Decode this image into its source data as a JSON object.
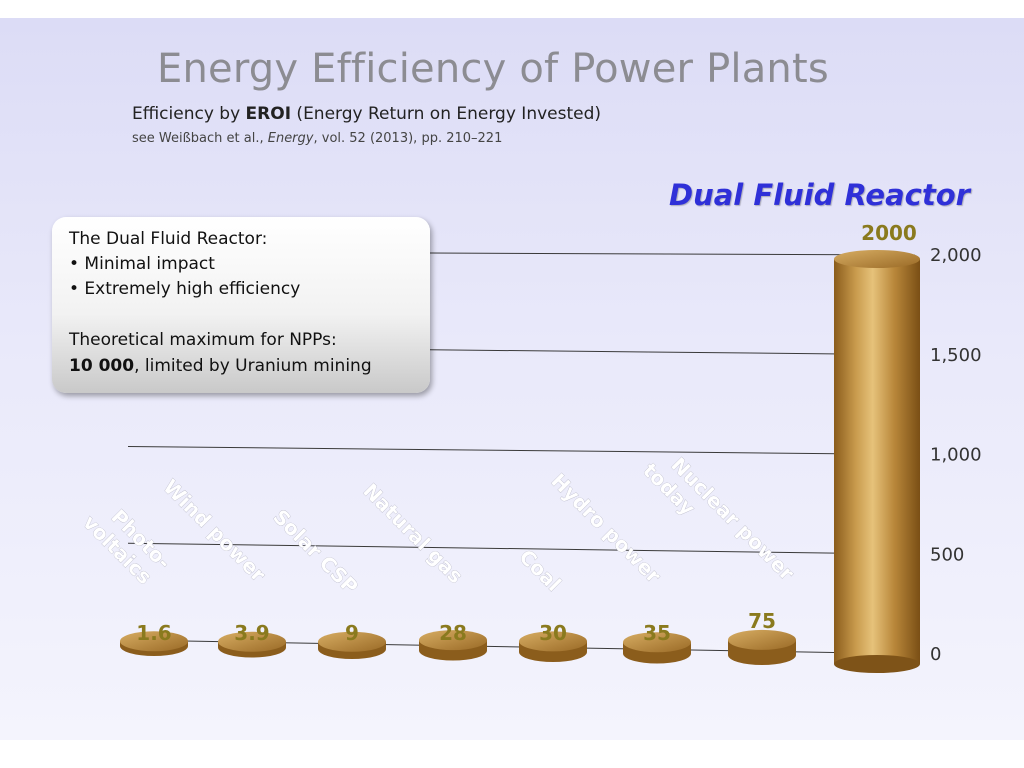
{
  "title": "Energy Efficiency of Power Plants",
  "subtitle": {
    "prefix": "Efficiency by ",
    "bold": "EROI",
    "suffix": " (Energy Return on Energy Invested)"
  },
  "reference": {
    "prefix": "see Weißbach et al., ",
    "italic": "Energy",
    "suffix": ", vol. 52 (2013), pp. 210–221"
  },
  "highlight_label": "Dual Fluid Reactor",
  "infobox": {
    "heading": "The Dual Fluid Reactor:",
    "bullets": [
      "• Minimal impact",
      "• Extremely high efficiency"
    ],
    "note_line1": "Theoretical maximum for NPPs:",
    "note_bold": "10 000",
    "note_rest": ", limited by Uranium mining"
  },
  "chart_data": {
    "type": "bar",
    "categories": [
      "Photo-\nvoltaics",
      "Wind power",
      "Solar CSP",
      "Natural gas",
      "Coal",
      "Hydro power",
      "Nuclear power\ntoday",
      ""
    ],
    "values": [
      1.6,
      3.9,
      9,
      28,
      30,
      35,
      75,
      2000
    ],
    "value_labels": [
      "1.6",
      "3.9",
      "9",
      "28",
      "30",
      "35",
      "75",
      "2000"
    ],
    "yticks": [
      0,
      500,
      1000,
      1500,
      2000
    ],
    "ytick_labels": [
      "0",
      "500",
      "1,000",
      "1,500",
      "2,000"
    ],
    "ylim": [
      0,
      2000
    ],
    "grid": true,
    "colors": {
      "bar": "#b8893a",
      "value_label": "#8a7a1e",
      "axis_text": "#333333"
    }
  }
}
